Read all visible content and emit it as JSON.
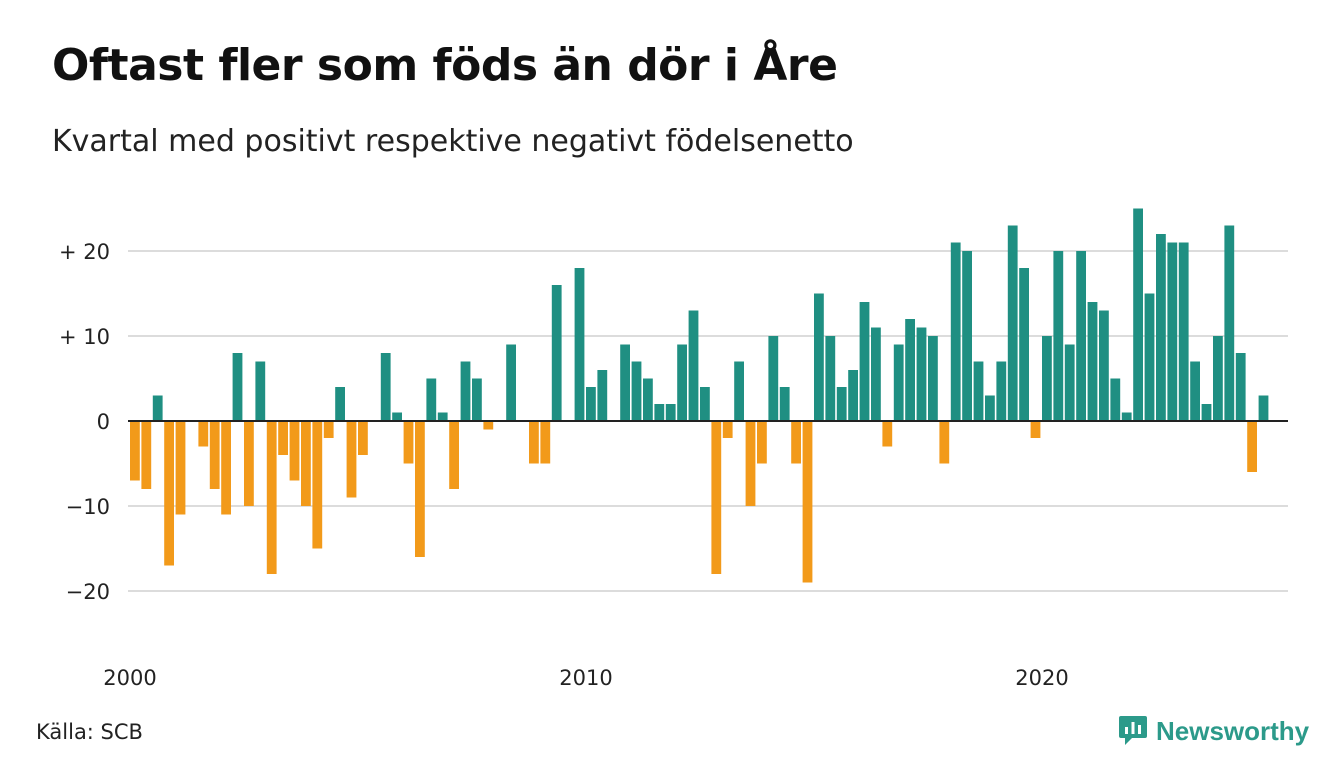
{
  "title": "Oftast fler som föds än dör i Åre",
  "subtitle": "Kvartal med positivt respektive negativt födelsenetto",
  "source": "Källa: SCB",
  "brand": {
    "name": "Newsworthy",
    "icon": "newsworthy-logo-icon"
  },
  "colors": {
    "positive": "#1f8f82",
    "negative": "#f29a1a",
    "grid": "#dcdcdc",
    "zero": "#222222",
    "brand": "#2c9a8a"
  },
  "chart_data": {
    "type": "bar",
    "x_start": 2000,
    "x_step": 0.25,
    "ylim": [
      -25,
      25
    ],
    "yticks": [
      {
        "value": 20,
        "label": "+ 20"
      },
      {
        "value": 10,
        "label": "+ 10"
      },
      {
        "value": 0,
        "label": "0"
      },
      {
        "value": -10,
        "label": "−10"
      },
      {
        "value": -20,
        "label": "−20"
      }
    ],
    "xticks": [
      {
        "value": 2000,
        "label": "2000"
      },
      {
        "value": 2010,
        "label": "2010"
      },
      {
        "value": 2020,
        "label": "2020"
      }
    ],
    "grid": true,
    "legend": "none",
    "values": [
      -7,
      -8,
      3,
      -17,
      -11,
      0,
      -3,
      -8,
      -11,
      8,
      -10,
      7,
      -18,
      -4,
      -7,
      -10,
      -15,
      -2,
      4,
      -9,
      -4,
      0,
      8,
      1,
      -5,
      -16,
      5,
      1,
      -8,
      7,
      5,
      -1,
      0,
      9,
      0,
      -5,
      -5,
      16,
      0,
      18,
      4,
      6,
      0,
      9,
      7,
      5,
      2,
      2,
      9,
      13,
      4,
      -18,
      -2,
      7,
      -10,
      -5,
      10,
      4,
      -5,
      -19,
      15,
      10,
      4,
      6,
      14,
      11,
      -3,
      9,
      12,
      11,
      10,
      -5,
      21,
      20,
      7,
      3,
      7,
      23,
      18,
      -2,
      10,
      20,
      9,
      20,
      14,
      13,
      5,
      1,
      25,
      15,
      22,
      21,
      21,
      7,
      2,
      10,
      23,
      8,
      -6,
      3
    ]
  }
}
